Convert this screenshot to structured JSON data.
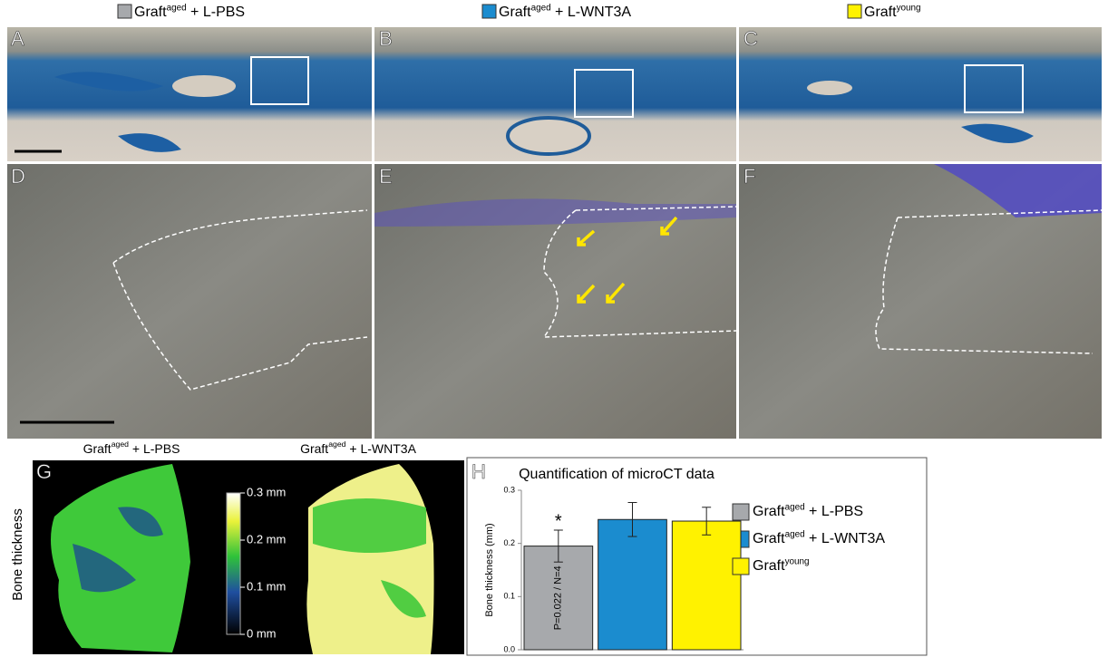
{
  "header": {
    "groups": [
      {
        "name": "Graft",
        "superscript": "aged",
        "suffix": " + L-PBS",
        "color": "#a7a9ac"
      },
      {
        "name": "Graft",
        "superscript": "aged",
        "suffix": " + L-WNT3A",
        "color": "#1b8ccf"
      },
      {
        "name": "Graft",
        "superscript": "young",
        "color": "#fff200"
      }
    ]
  },
  "panels": {
    "letters": [
      "A",
      "B",
      "C",
      "D",
      "E",
      "F",
      "G",
      "H"
    ]
  },
  "panel_g": {
    "labels": [
      {
        "name": "Graft",
        "superscript": "aged",
        "suffix": " + L-PBS"
      },
      {
        "name": "Graft",
        "superscript": "aged",
        "suffix": " + L-WNT3A"
      }
    ],
    "side_label": "Bone thickness",
    "colorbar": {
      "lim": [
        0,
        0.3
      ],
      "ticks": [
        {
          "value": 0.3,
          "label": "0.3 mm"
        },
        {
          "value": 0.2,
          "label": "0.2 mm"
        },
        {
          "value": 0.1,
          "label": "0.1 mm"
        },
        {
          "value": 0,
          "label": "0 mm"
        }
      ]
    }
  },
  "chart_data": {
    "type": "bar",
    "title": "Quantification of microCT data",
    "ylabel": "Bone thickness (mm)",
    "ylim": [
      0,
      0.3
    ],
    "yticks": [
      {
        "value": 0,
        "label": "0.0"
      },
      0.1,
      0.2,
      0.3
    ],
    "series": [
      {
        "name": "Graft",
        "superscript": "aged",
        "suffix": " + L-PBS",
        "color": "#a7a9ac",
        "values": [
          0.195
        ],
        "errors": [
          0.03
        ]
      },
      {
        "name": "Graft",
        "superscript": "aged",
        "suffix": " + L-WNT3A",
        "color": "#1b8ccf",
        "values": [
          0.245
        ],
        "errors": [
          0.032
        ]
      },
      {
        "name": "Graft",
        "superscript": "young",
        "color": "#fff200",
        "values": [
          0.242
        ],
        "errors": [
          0.026
        ]
      }
    ],
    "annotations": [
      "*",
      "P=0.022 / N=4"
    ]
  }
}
